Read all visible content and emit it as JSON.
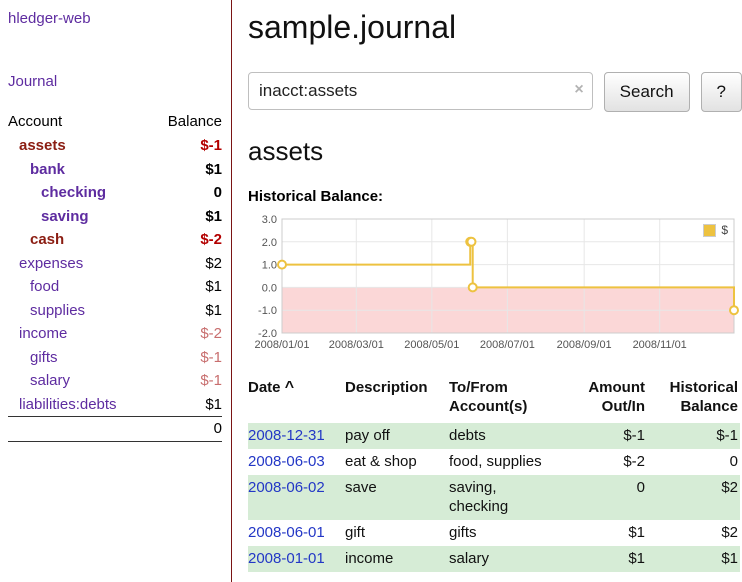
{
  "app": {
    "title": "hledger-web",
    "nav_journal": "Journal"
  },
  "colors": {
    "link_purple": "#5e2ca0",
    "account_negative_name": "#8b1d12",
    "negative_red": "#b30000",
    "pale_red": "#c86e6e",
    "date_blue": "#2337c6",
    "row_green": "#d6ecd6",
    "chart_gold": "#edc240",
    "chart_negative_region": "#fbd7d7",
    "sidebar_divider": "#7a1414"
  },
  "sidebar": {
    "headers": {
      "account": "Account",
      "balance": "Balance"
    },
    "accounts": [
      {
        "name": "assets",
        "balance": "$-1"
      },
      {
        "name": "bank",
        "balance": "$1"
      },
      {
        "name": "checking",
        "balance": "0"
      },
      {
        "name": "saving",
        "balance": "$1"
      },
      {
        "name": "cash",
        "balance": "$-2"
      },
      {
        "name": "expenses",
        "balance": "$2"
      },
      {
        "name": "food",
        "balance": "$1"
      },
      {
        "name": "supplies",
        "balance": "$1"
      },
      {
        "name": "income",
        "balance": "$-2"
      },
      {
        "name": "gifts",
        "balance": "$-1"
      },
      {
        "name": "salary",
        "balance": "$-1"
      },
      {
        "name": "liabilities:debts",
        "balance": "$1"
      }
    ],
    "total": "0"
  },
  "main": {
    "title": "sample.journal",
    "account_heading": "assets",
    "chart_heading": "Historical Balance:"
  },
  "search": {
    "value": "inacct:assets",
    "clear_icon": "×",
    "button_label": "Search",
    "help_label": "?"
  },
  "chart_data": {
    "type": "line",
    "title": "Historical Balance:",
    "step": true,
    "grid": true,
    "legend_position": "top-right",
    "xlim": [
      "2008-01-01",
      "2008-12-31"
    ],
    "ylim": [
      -2,
      3
    ],
    "y_ticks": [
      3,
      2,
      1,
      0,
      -1,
      -2
    ],
    "x_ticks": [
      "2008/01/01",
      "2008/03/01",
      "2008/05/01",
      "2008/07/01",
      "2008/09/01",
      "2008/11/01"
    ],
    "negative_region_color": "#fbd7d7",
    "series": [
      {
        "name": "$",
        "color": "#edc240",
        "points": [
          {
            "date": "2008-01-01",
            "value": 1
          },
          {
            "date": "2008-06-01",
            "value": 2
          },
          {
            "date": "2008-06-02",
            "value": 2
          },
          {
            "date": "2008-06-03",
            "value": 0
          },
          {
            "date": "2008-12-31",
            "value": -1
          }
        ]
      }
    ]
  },
  "register": {
    "headers": {
      "date": "Date",
      "sort_indicator": "^",
      "description": "Description",
      "account": "To/From Account(s)",
      "amount": "Amount Out/In",
      "balance": "Historical Balance"
    },
    "rows": [
      {
        "date": "2008-12-31",
        "description": "pay off",
        "account": "debts",
        "amount": "$-1",
        "balance": "$-1"
      },
      {
        "date": "2008-06-03",
        "description": "eat & shop",
        "account": "food, supplies",
        "amount": "$-2",
        "balance": "0"
      },
      {
        "date": "2008-06-02",
        "description": "save",
        "account": "saving, checking",
        "amount": "0",
        "balance": "$2"
      },
      {
        "date": "2008-06-01",
        "description": "gift",
        "account": "gifts",
        "amount": "$1",
        "balance": "$2"
      },
      {
        "date": "2008-01-01",
        "description": "income",
        "account": "salary",
        "amount": "$1",
        "balance": "$1"
      }
    ]
  }
}
